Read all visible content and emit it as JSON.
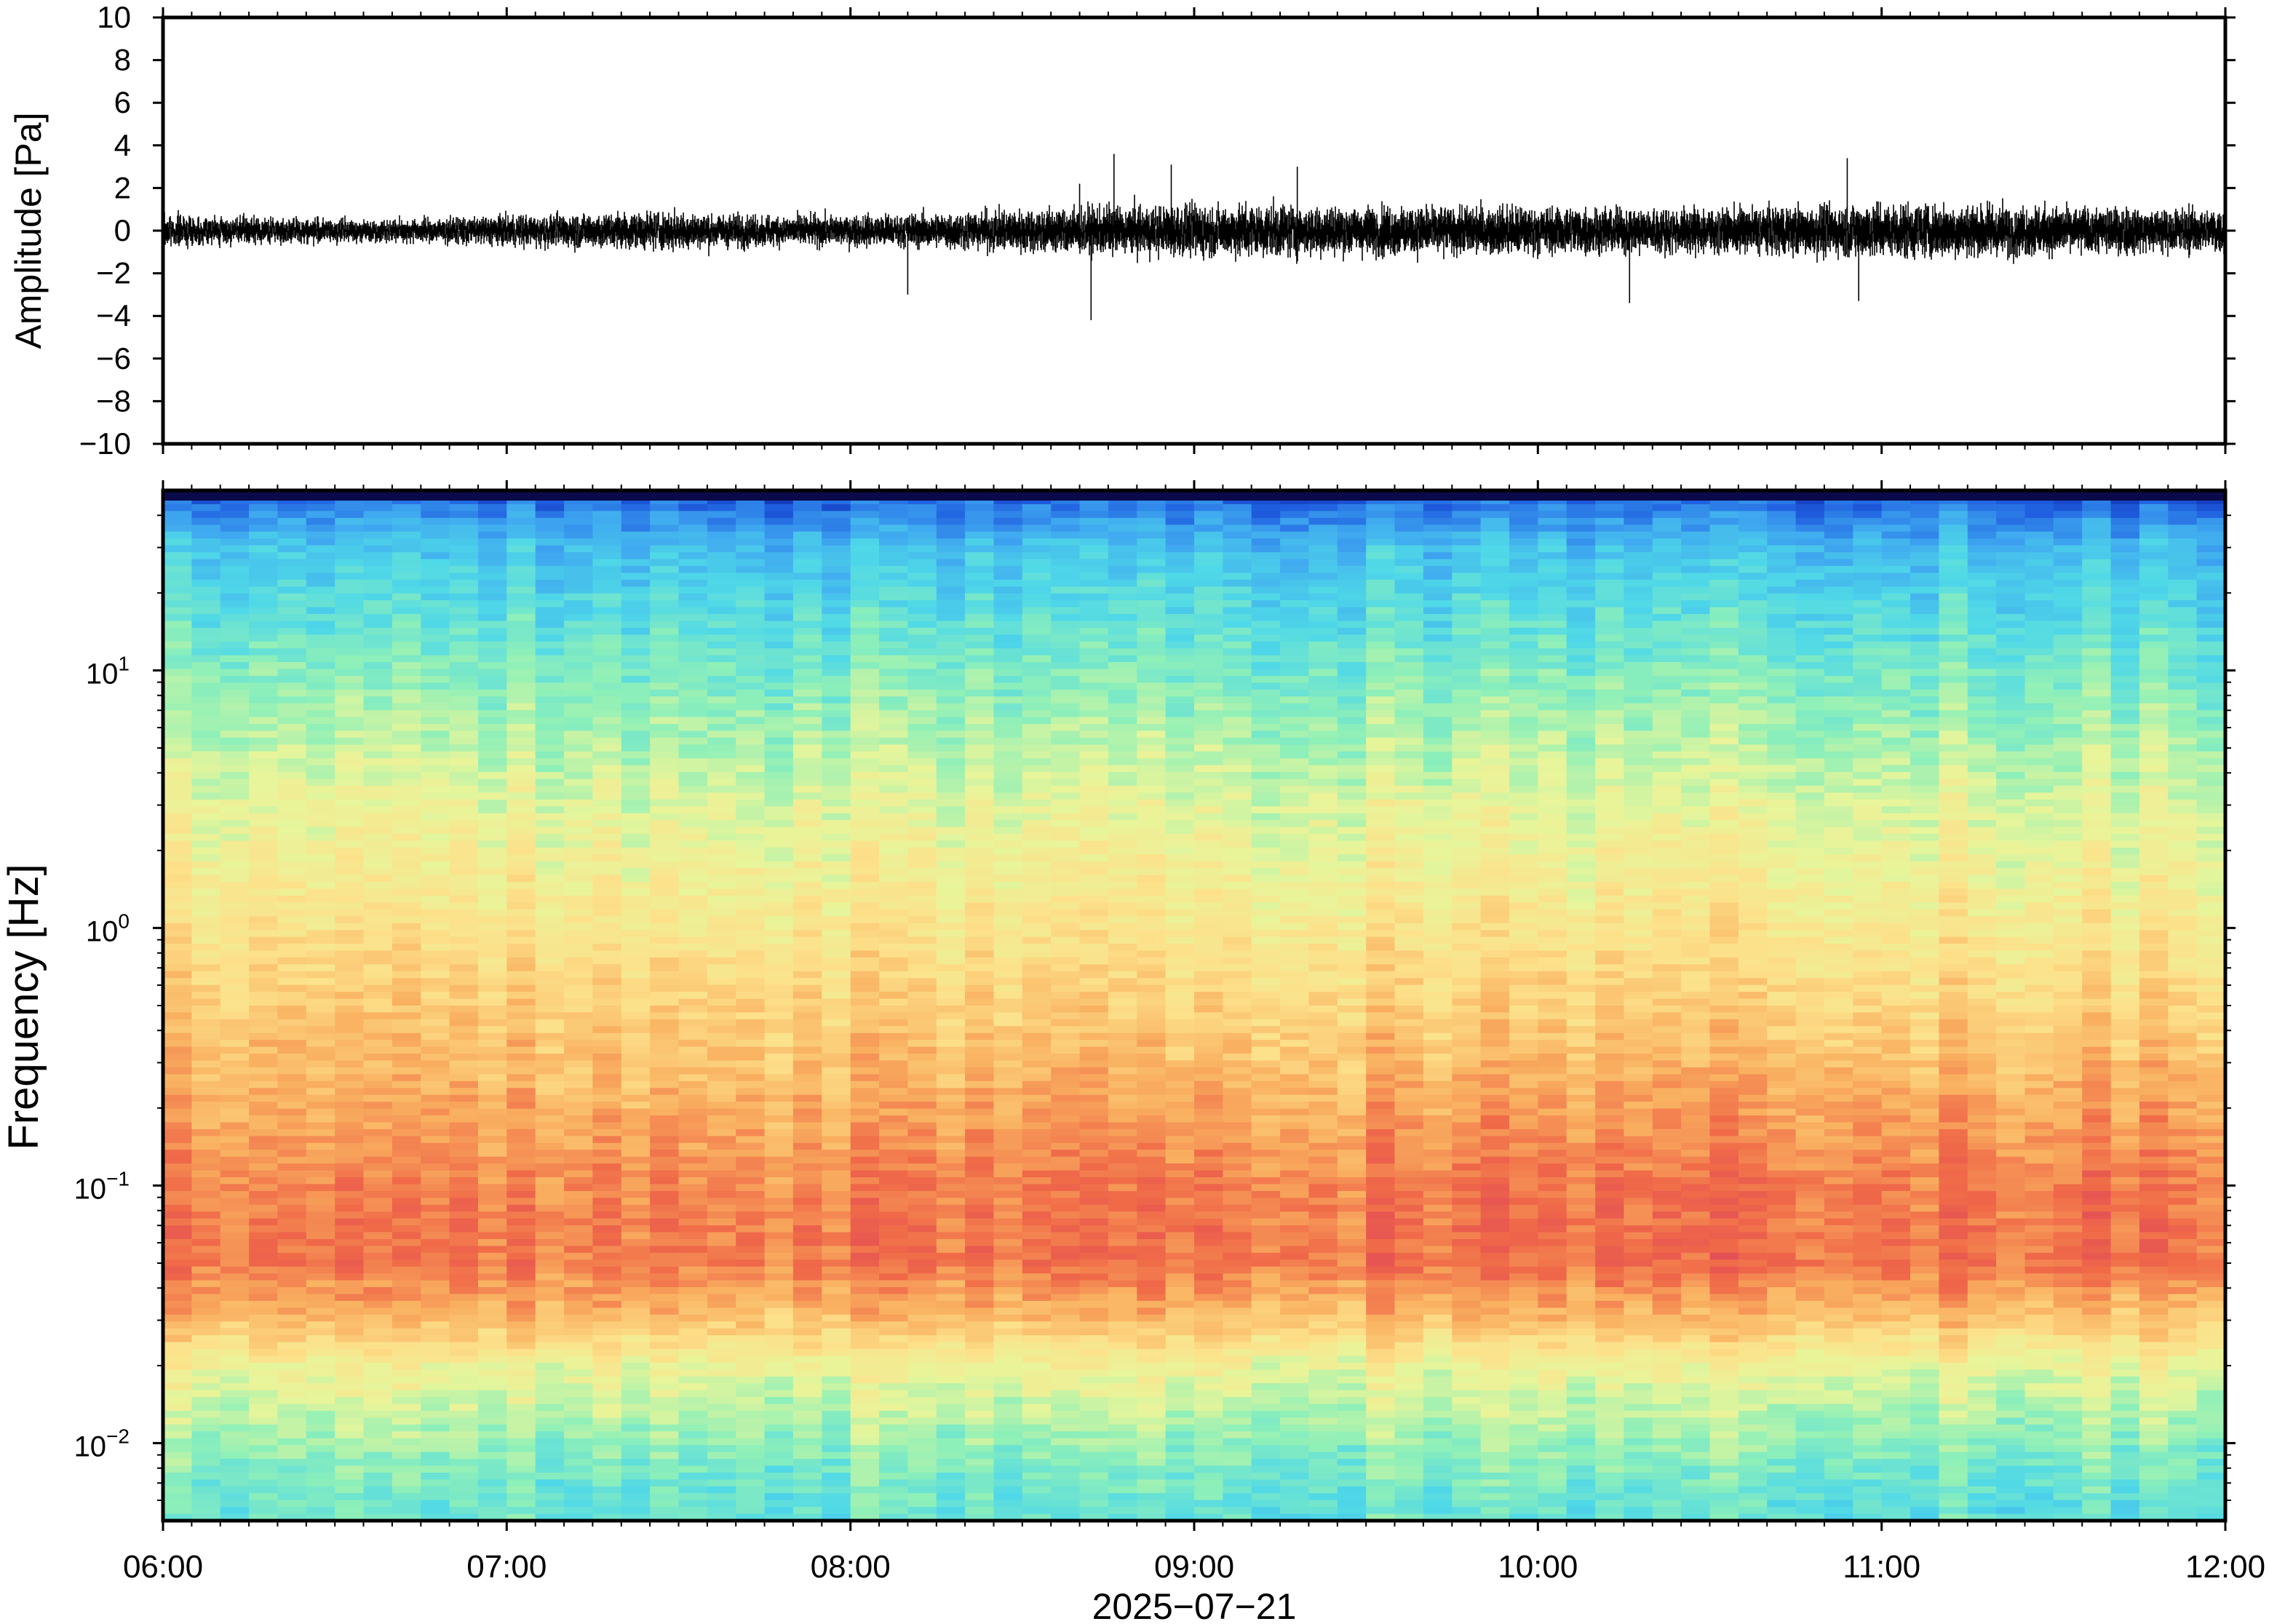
{
  "chart_data": [
    {
      "type": "line",
      "ylabel": "Amplitude [Pa]",
      "ylim": [
        -10,
        10
      ],
      "yticks": [
        "10",
        "8",
        "6",
        "4",
        "2",
        "0",
        "−2",
        "−4",
        "−6",
        "−8",
        "−10"
      ],
      "ytick_values": [
        10,
        8,
        6,
        4,
        2,
        0,
        -2,
        -4,
        -6,
        -8,
        -10
      ],
      "xlim": [
        "06:00",
        "12:00"
      ],
      "grid": false,
      "trace_color": "#000000",
      "envelope": {
        "x_minutes": [
          0,
          15,
          30,
          45,
          60,
          75,
          90,
          105,
          120,
          135,
          150,
          165,
          180,
          195,
          210,
          225,
          240,
          255,
          270,
          285,
          300,
          315,
          330,
          345,
          360
        ],
        "half_range": [
          0.9,
          0.8,
          0.7,
          0.7,
          0.9,
          1.0,
          1.1,
          0.9,
          0.9,
          1.0,
          1.3,
          1.4,
          1.5,
          1.5,
          1.4,
          1.4,
          1.4,
          1.3,
          1.3,
          1.4,
          1.6,
          1.6,
          1.4,
          1.3,
          1.3
        ]
      },
      "spikes": [
        {
          "x_minutes": 130,
          "y": -3.0
        },
        {
          "x_minutes": 160,
          "y": 2.2
        },
        {
          "x_minutes": 162,
          "y": -4.2
        },
        {
          "x_minutes": 166,
          "y": 3.6
        },
        {
          "x_minutes": 176,
          "y": 3.1
        },
        {
          "x_minutes": 198,
          "y": 3.0
        },
        {
          "x_minutes": 256,
          "y": -3.4
        },
        {
          "x_minutes": 294,
          "y": 3.4
        },
        {
          "x_minutes": 296,
          "y": -3.3
        }
      ]
    },
    {
      "type": "heatmap",
      "ylabel": "Frequency [Hz]",
      "yscale": "log",
      "ylim": [
        0.005,
        50
      ],
      "yticks": [
        {
          "value": 10,
          "base": "10",
          "exp": "1"
        },
        {
          "value": 1,
          "base": "10",
          "exp": "0"
        },
        {
          "value": 0.1,
          "base": "10",
          "exp": "−1"
        },
        {
          "value": 0.01,
          "base": "10",
          "exp": "−2"
        }
      ],
      "xlim": [
        "06:00",
        "12:00"
      ],
      "colormap": [
        "#0a1f9e",
        "#1f5fe0",
        "#3fa8f0",
        "#4fd8e8",
        "#8ff0b8",
        "#e8f59a",
        "#fde08a",
        "#f9b060",
        "#f06a48",
        "#e04858"
      ],
      "description_profile_frequency_hz": [
        50,
        30,
        10,
        3,
        1,
        0.3,
        0.1,
        0.05,
        0.03,
        0.02,
        0.01,
        0.006
      ],
      "description_profile_level": [
        0.1,
        0.28,
        0.42,
        0.55,
        0.64,
        0.75,
        0.86,
        0.88,
        0.74,
        0.58,
        0.45,
        0.38
      ]
    }
  ],
  "x_axis": {
    "ticks": [
      "06:00",
      "07:00",
      "08:00",
      "09:00",
      "10:00",
      "11:00",
      "12:00"
    ],
    "title": "2025−07−21"
  },
  "colors": {
    "frame": "#000000",
    "background": "#ffffff"
  }
}
